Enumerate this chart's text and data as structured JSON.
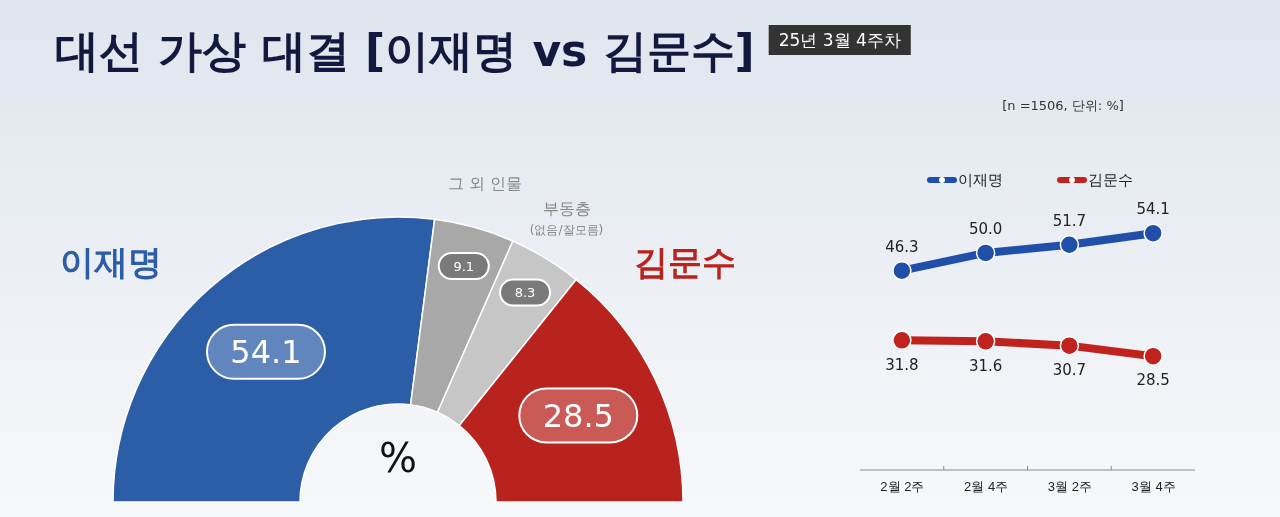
{
  "chart_data": [
    {
      "type": "donut",
      "title": "대선 가상 대결 [이재명 vs 김문수]",
      "subtitle": "25년 3월 4주차",
      "categories": [
        "이재명",
        "그 외 인물",
        "부동층\n(없음/잘모름)",
        "김문수"
      ],
      "values": [
        54.1,
        9.1,
        8.3,
        28.5
      ],
      "colors": [
        "#2c5ea8",
        "#a8a8a8",
        "#c6c6c6",
        "#b9231d"
      ],
      "data_labels": true,
      "annotations": [
        "%"
      ]
    },
    {
      "type": "line",
      "categories": [
        "2월 2주",
        "2월 4주",
        "3월 2주",
        "3월 4주"
      ],
      "series": [
        {
          "name": "이재명",
          "color": "#1f4fa8",
          "values": [
            46.3,
            50.0,
            51.7,
            54.1
          ],
          "value_labels": [
            "46.3",
            "50.0",
            "51.7",
            "54.1"
          ]
        },
        {
          "name": "김문수",
          "color": "#c0221d",
          "values": [
            31.8,
            31.6,
            30.7,
            28.5
          ],
          "value_labels": [
            "31.8",
            "31.6",
            "30.7",
            "28.5"
          ]
        }
      ],
      "legend": "top",
      "marker": "circle",
      "line_style": "solid",
      "annotations": [
        "[n =1506, 단위: %]"
      ]
    }
  ]
}
